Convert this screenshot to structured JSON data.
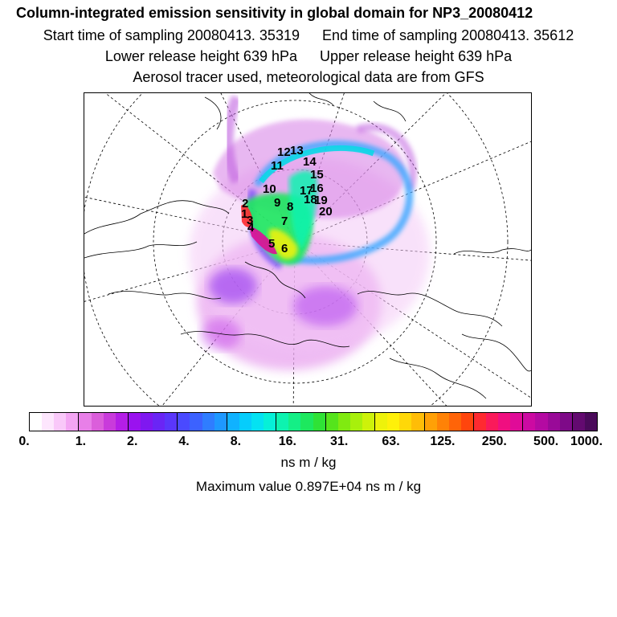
{
  "header": {
    "title": "Column-integrated emission sensitivity in global domain for NP3_20080412",
    "start_time": "Start time of sampling 20080413. 35319",
    "end_time": "End time of sampling 20080413. 35612",
    "lower_release": "Lower release height  639 hPa",
    "upper_release": "Upper release height  639 hPa",
    "tracer_note": "Aerosol tracer used, meteorological data are from GFS"
  },
  "chart_data": {
    "type": "heatmap",
    "projection": "north-polar stereographic",
    "colorbar": {
      "tick_labels": [
        "0.",
        "1.",
        "2.",
        "4.",
        "8.",
        "16.",
        "31.",
        "63.",
        "125.",
        "250.",
        "500.",
        "1000."
      ],
      "unit": "ns m / kg",
      "colors": [
        "#ffffff",
        "#fde6fd",
        "#f9c8f9",
        "#f3a5f3",
        "#e87fe8",
        "#db5edb",
        "#c93bdb",
        "#b41ee6",
        "#9a12ef",
        "#7f18f0",
        "#6a25f5",
        "#5a36fb",
        "#4a4aff",
        "#3c62ff",
        "#2f7dff",
        "#1e98ff",
        "#10b2ff",
        "#06cdfc",
        "#04e2f2",
        "#06f0d8",
        "#0df3b0",
        "#14ef86",
        "#1de85e",
        "#2fe236",
        "#55e41c",
        "#80ea10",
        "#a8f00c",
        "#cdf20a",
        "#eef20a",
        "#fff009",
        "#ffd808",
        "#ffbd07",
        "#ffa006",
        "#ff8206",
        "#ff6408",
        "#ff450d",
        "#ff2a30",
        "#fa1a5a",
        "#f00f80",
        "#e00b98",
        "#cc0aa2",
        "#b40aa2",
        "#990a98",
        "#7e0a88",
        "#630a70",
        "#4a0a5a"
      ],
      "major_tick_every": 4
    },
    "maximum_value_label": "Maximum value  0.897E+04 ns m / kg",
    "trajectory_labels": [
      "1",
      "2",
      "3",
      "4",
      "5",
      "6",
      "7",
      "8",
      "9",
      "10",
      "11",
      "12",
      "13",
      "14",
      "15",
      "16",
      "17",
      "18",
      "19",
      "20"
    ]
  }
}
